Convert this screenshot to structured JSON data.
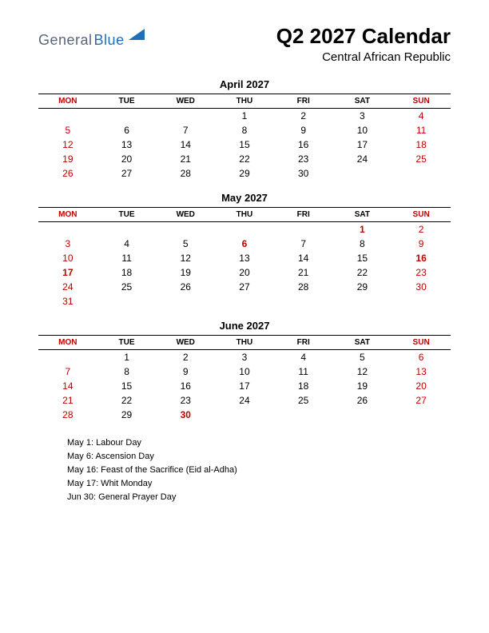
{
  "logo": {
    "part1": "General",
    "part2": "Blue",
    "shape_color": "#1e6fb8",
    "text1_color": "#5a6778",
    "text2_color": "#1e6fb8"
  },
  "title": "Q2 2027 Calendar",
  "subtitle": "Central African Republic",
  "day_headers": [
    "MON",
    "TUE",
    "WED",
    "THU",
    "FRI",
    "SAT",
    "SUN"
  ],
  "colors": {
    "red": "#c00000",
    "black": "#000000",
    "border": "#000000",
    "background": "#ffffff"
  },
  "months": [
    {
      "name": "April 2027",
      "weeks": [
        [
          {
            "d": ""
          },
          {
            "d": ""
          },
          {
            "d": ""
          },
          {
            "d": "1"
          },
          {
            "d": "2"
          },
          {
            "d": "3"
          },
          {
            "d": "4",
            "s": "red"
          }
        ],
        [
          {
            "d": "5",
            "s": "red"
          },
          {
            "d": "6"
          },
          {
            "d": "7"
          },
          {
            "d": "8"
          },
          {
            "d": "9"
          },
          {
            "d": "10"
          },
          {
            "d": "11",
            "s": "red"
          }
        ],
        [
          {
            "d": "12",
            "s": "red"
          },
          {
            "d": "13"
          },
          {
            "d": "14"
          },
          {
            "d": "15"
          },
          {
            "d": "16"
          },
          {
            "d": "17"
          },
          {
            "d": "18",
            "s": "red"
          }
        ],
        [
          {
            "d": "19",
            "s": "red"
          },
          {
            "d": "20"
          },
          {
            "d": "21"
          },
          {
            "d": "22"
          },
          {
            "d": "23"
          },
          {
            "d": "24"
          },
          {
            "d": "25",
            "s": "red"
          }
        ],
        [
          {
            "d": "26",
            "s": "red"
          },
          {
            "d": "27"
          },
          {
            "d": "28"
          },
          {
            "d": "29"
          },
          {
            "d": "30"
          },
          {
            "d": ""
          },
          {
            "d": ""
          }
        ]
      ]
    },
    {
      "name": "May 2027",
      "weeks": [
        [
          {
            "d": ""
          },
          {
            "d": ""
          },
          {
            "d": ""
          },
          {
            "d": ""
          },
          {
            "d": ""
          },
          {
            "d": "1",
            "s": "redbold"
          },
          {
            "d": "2",
            "s": "red"
          }
        ],
        [
          {
            "d": "3",
            "s": "red"
          },
          {
            "d": "4"
          },
          {
            "d": "5"
          },
          {
            "d": "6",
            "s": "redbold"
          },
          {
            "d": "7"
          },
          {
            "d": "8"
          },
          {
            "d": "9",
            "s": "red"
          }
        ],
        [
          {
            "d": "10",
            "s": "red"
          },
          {
            "d": "11"
          },
          {
            "d": "12"
          },
          {
            "d": "13"
          },
          {
            "d": "14"
          },
          {
            "d": "15"
          },
          {
            "d": "16",
            "s": "redbold"
          }
        ],
        [
          {
            "d": "17",
            "s": "redbold"
          },
          {
            "d": "18"
          },
          {
            "d": "19"
          },
          {
            "d": "20"
          },
          {
            "d": "21"
          },
          {
            "d": "22"
          },
          {
            "d": "23",
            "s": "red"
          }
        ],
        [
          {
            "d": "24",
            "s": "red"
          },
          {
            "d": "25"
          },
          {
            "d": "26"
          },
          {
            "d": "27"
          },
          {
            "d": "28"
          },
          {
            "d": "29"
          },
          {
            "d": "30",
            "s": "red"
          }
        ],
        [
          {
            "d": "31",
            "s": "red"
          },
          {
            "d": ""
          },
          {
            "d": ""
          },
          {
            "d": ""
          },
          {
            "d": ""
          },
          {
            "d": ""
          },
          {
            "d": ""
          }
        ]
      ]
    },
    {
      "name": "June 2027",
      "weeks": [
        [
          {
            "d": ""
          },
          {
            "d": "1"
          },
          {
            "d": "2"
          },
          {
            "d": "3"
          },
          {
            "d": "4"
          },
          {
            "d": "5"
          },
          {
            "d": "6",
            "s": "red"
          }
        ],
        [
          {
            "d": "7",
            "s": "red"
          },
          {
            "d": "8"
          },
          {
            "d": "9"
          },
          {
            "d": "10"
          },
          {
            "d": "11"
          },
          {
            "d": "12"
          },
          {
            "d": "13",
            "s": "red"
          }
        ],
        [
          {
            "d": "14",
            "s": "red"
          },
          {
            "d": "15"
          },
          {
            "d": "16"
          },
          {
            "d": "17"
          },
          {
            "d": "18"
          },
          {
            "d": "19"
          },
          {
            "d": "20",
            "s": "red"
          }
        ],
        [
          {
            "d": "21",
            "s": "red"
          },
          {
            "d": "22"
          },
          {
            "d": "23"
          },
          {
            "d": "24"
          },
          {
            "d": "25"
          },
          {
            "d": "26"
          },
          {
            "d": "27",
            "s": "red"
          }
        ],
        [
          {
            "d": "28",
            "s": "red"
          },
          {
            "d": "29"
          },
          {
            "d": "30",
            "s": "redbold"
          },
          {
            "d": ""
          },
          {
            "d": ""
          },
          {
            "d": ""
          },
          {
            "d": ""
          }
        ]
      ]
    }
  ],
  "holidays": [
    "May 1: Labour Day",
    "May 6: Ascension Day",
    "May 16: Feast of the Sacrifice (Eid al-Adha)",
    "May 17: Whit Monday",
    "Jun 30: General Prayer Day"
  ]
}
